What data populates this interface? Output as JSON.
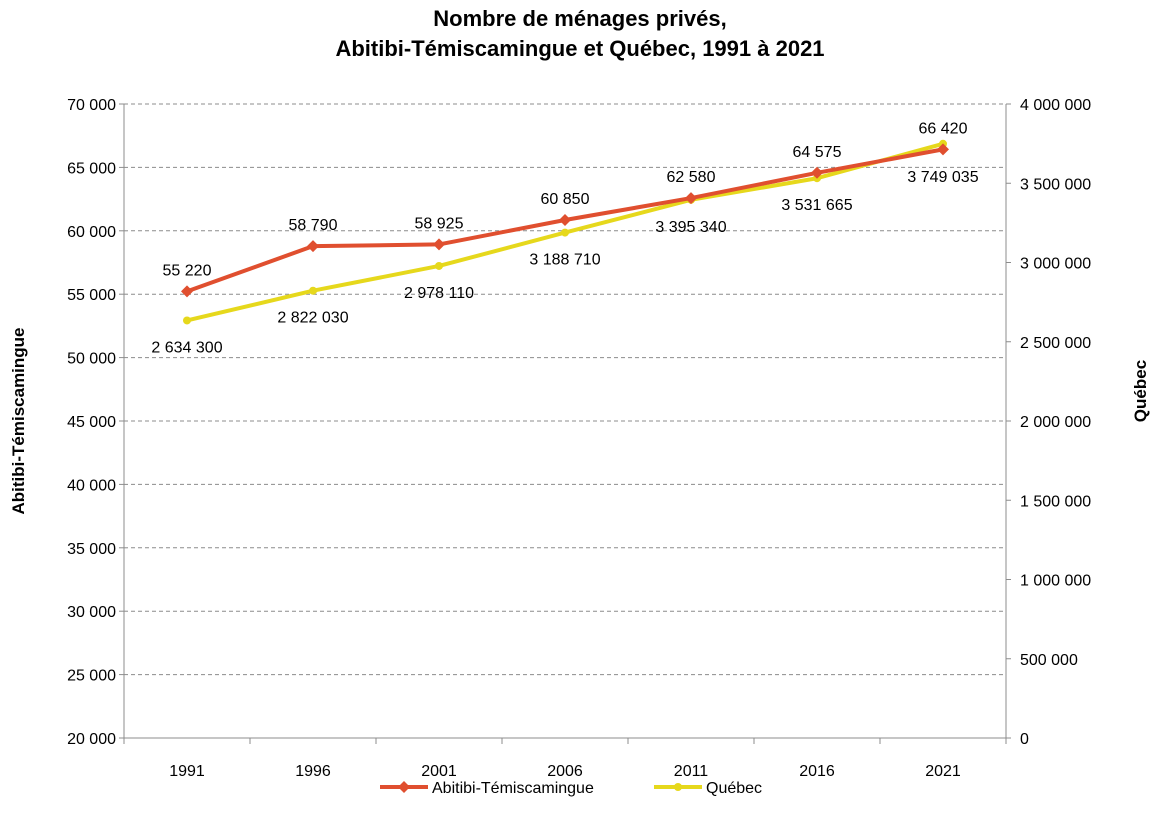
{
  "chart_data": {
    "type": "line",
    "title_line1": "Nombre de ménages privés,",
    "title_line2": "Abitibi-Témiscamingue et Québec, 1991 à 2021",
    "categories": [
      "1991",
      "1996",
      "2001",
      "2006",
      "2011",
      "2016",
      "2021"
    ],
    "y_left": {
      "label": "Abitibi-Témiscamingue",
      "range": [
        20000,
        70000
      ],
      "ticks": [
        20000,
        25000,
        30000,
        35000,
        40000,
        45000,
        50000,
        55000,
        60000,
        65000,
        70000
      ],
      "tick_labels": [
        "20 000",
        "25 000",
        "30 000",
        "35 000",
        "40 000",
        "45 000",
        "50 000",
        "55 000",
        "60 000",
        "65 000",
        "70 000"
      ]
    },
    "y_right": {
      "label": "Québec",
      "range": [
        0,
        4000000
      ],
      "ticks": [
        0,
        500000,
        1000000,
        1500000,
        2000000,
        2500000,
        3000000,
        3500000,
        4000000
      ],
      "tick_labels": [
        "0",
        "500 000",
        "1 000 000",
        "1 500 000",
        "2 000 000",
        "2 500 000",
        "3 000 000",
        "3 500 000",
        "4 000 000"
      ]
    },
    "series": [
      {
        "name": "Abitibi-Témiscamingue",
        "axis": "left",
        "color": "#e04f2f",
        "marker": "diamond",
        "values": [
          55220,
          58790,
          58925,
          60850,
          62580,
          64575,
          66420
        ],
        "labels": [
          "55 220",
          "58 790",
          "58 925",
          "60 850",
          "62 580",
          "64 575",
          "66 420"
        ]
      },
      {
        "name": "Québec",
        "axis": "right",
        "color": "#e6d81c",
        "marker": "circle",
        "values": [
          2634300,
          2822030,
          2978110,
          3188710,
          3395340,
          3531665,
          3749035
        ],
        "labels": [
          "2 634 300",
          "2 822 030",
          "2 978 110",
          "3 188 710",
          "3 395 340",
          "3 531 665",
          "3 749 035"
        ]
      }
    ],
    "grid": true,
    "legend_position": "bottom"
  }
}
